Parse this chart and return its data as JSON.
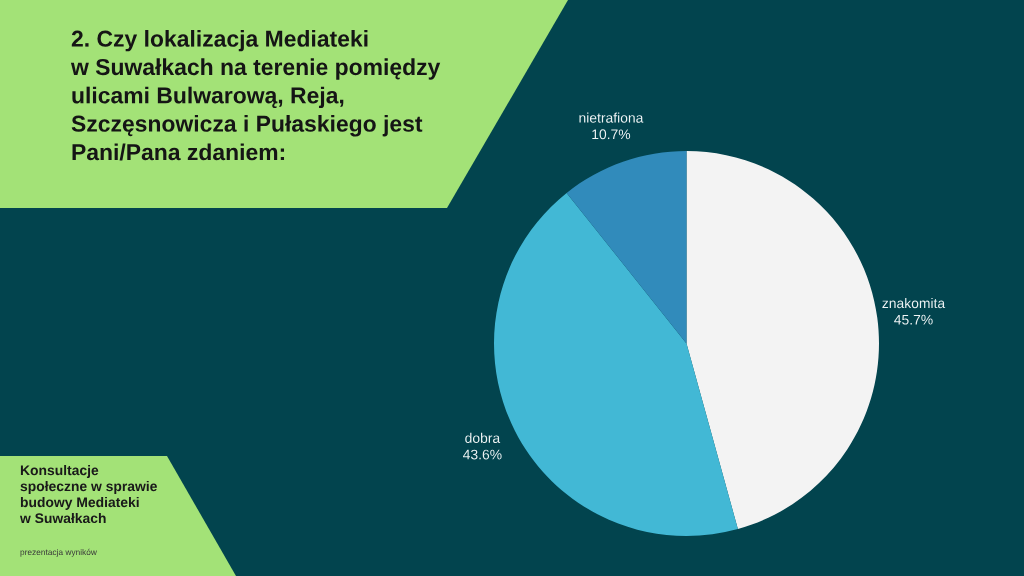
{
  "chart_data": {
    "type": "pie",
    "title": "2. Czy lokalizacja Mediateki\nw Suwałkach na terenie pomiędzy\nulicami Bulwarową, Reja,\nSzczęsnowicza i Pułaskiego jest\nPani/Pana zdaniem:",
    "categories": [
      "znakomita",
      "dobra",
      "nietrafiona"
    ],
    "values": [
      45.7,
      43.6,
      10.7
    ],
    "colors": [
      "#f3f3f3",
      "#42b8d5",
      "#318bbb"
    ],
    "value_labels": [
      "45.7%",
      "43.6%",
      "10.7%"
    ],
    "annotations": [
      "Konsultacje\nspołeczne w sprawie\nbudowy Mediateki\nw Suwałkach",
      "prezentacja wyników"
    ]
  }
}
